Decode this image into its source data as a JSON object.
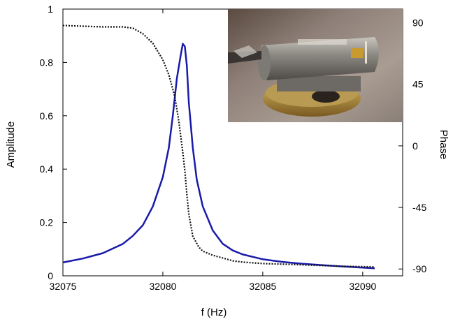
{
  "chart_data": {
    "type": "line",
    "title": "",
    "xlabel": "f (Hz)",
    "ylabel": "Amplitude",
    "y2label": "Phase",
    "xlim": [
      32075,
      32092
    ],
    "ylim": [
      0,
      1
    ],
    "y2lim": [
      -95,
      100
    ],
    "x_ticks": [
      32075,
      32080,
      32085,
      32090
    ],
    "y_ticks": [
      0,
      0.2,
      0.4,
      0.6,
      0.8,
      1
    ],
    "y2_ticks": [
      90,
      45,
      0,
      -45,
      -90
    ],
    "grid": false,
    "legend": "none",
    "series": [
      {
        "axis": "left",
        "style": "solid",
        "color": "#1a1aaa",
        "x": [
          32075,
          32076,
          32077,
          32078,
          32078.5,
          32079,
          32079.5,
          32080,
          32080.3,
          32080.5,
          32080.7,
          32080.9,
          32081.0,
          32081.1,
          32081.2,
          32081.3,
          32081.5,
          32081.7,
          32082,
          32082.5,
          32083,
          32083.5,
          32084,
          32085,
          32086,
          32087,
          32088,
          32089,
          32090,
          32090.6
        ],
        "y": [
          0.05,
          0.065,
          0.085,
          0.12,
          0.15,
          0.19,
          0.26,
          0.37,
          0.48,
          0.6,
          0.74,
          0.83,
          0.87,
          0.86,
          0.79,
          0.65,
          0.48,
          0.36,
          0.26,
          0.17,
          0.12,
          0.095,
          0.08,
          0.062,
          0.052,
          0.045,
          0.04,
          0.035,
          0.031,
          0.028
        ]
      },
      {
        "axis": "right",
        "style": "dotted",
        "color": "#111111",
        "x": [
          32075,
          32076,
          32077,
          32078,
          32078.5,
          32079,
          32079.5,
          32080,
          32080.3,
          32080.6,
          32080.8,
          32081.0,
          32081.1,
          32081.2,
          32081.3,
          32081.5,
          32081.8,
          32082,
          32082.5,
          32083,
          32083.5,
          32084,
          32085,
          32086,
          32087,
          32088,
          32089,
          32090,
          32090.6
        ],
        "y": [
          88,
          87.5,
          87,
          87,
          86,
          82,
          75,
          63,
          52,
          36,
          18,
          -5,
          -18,
          -35,
          -50,
          -66,
          -74,
          -77,
          -80,
          -82,
          -84,
          -85,
          -86,
          -86.5,
          -87,
          -87.5,
          -88,
          -88.3,
          -88.5
        ]
      }
    ]
  }
}
